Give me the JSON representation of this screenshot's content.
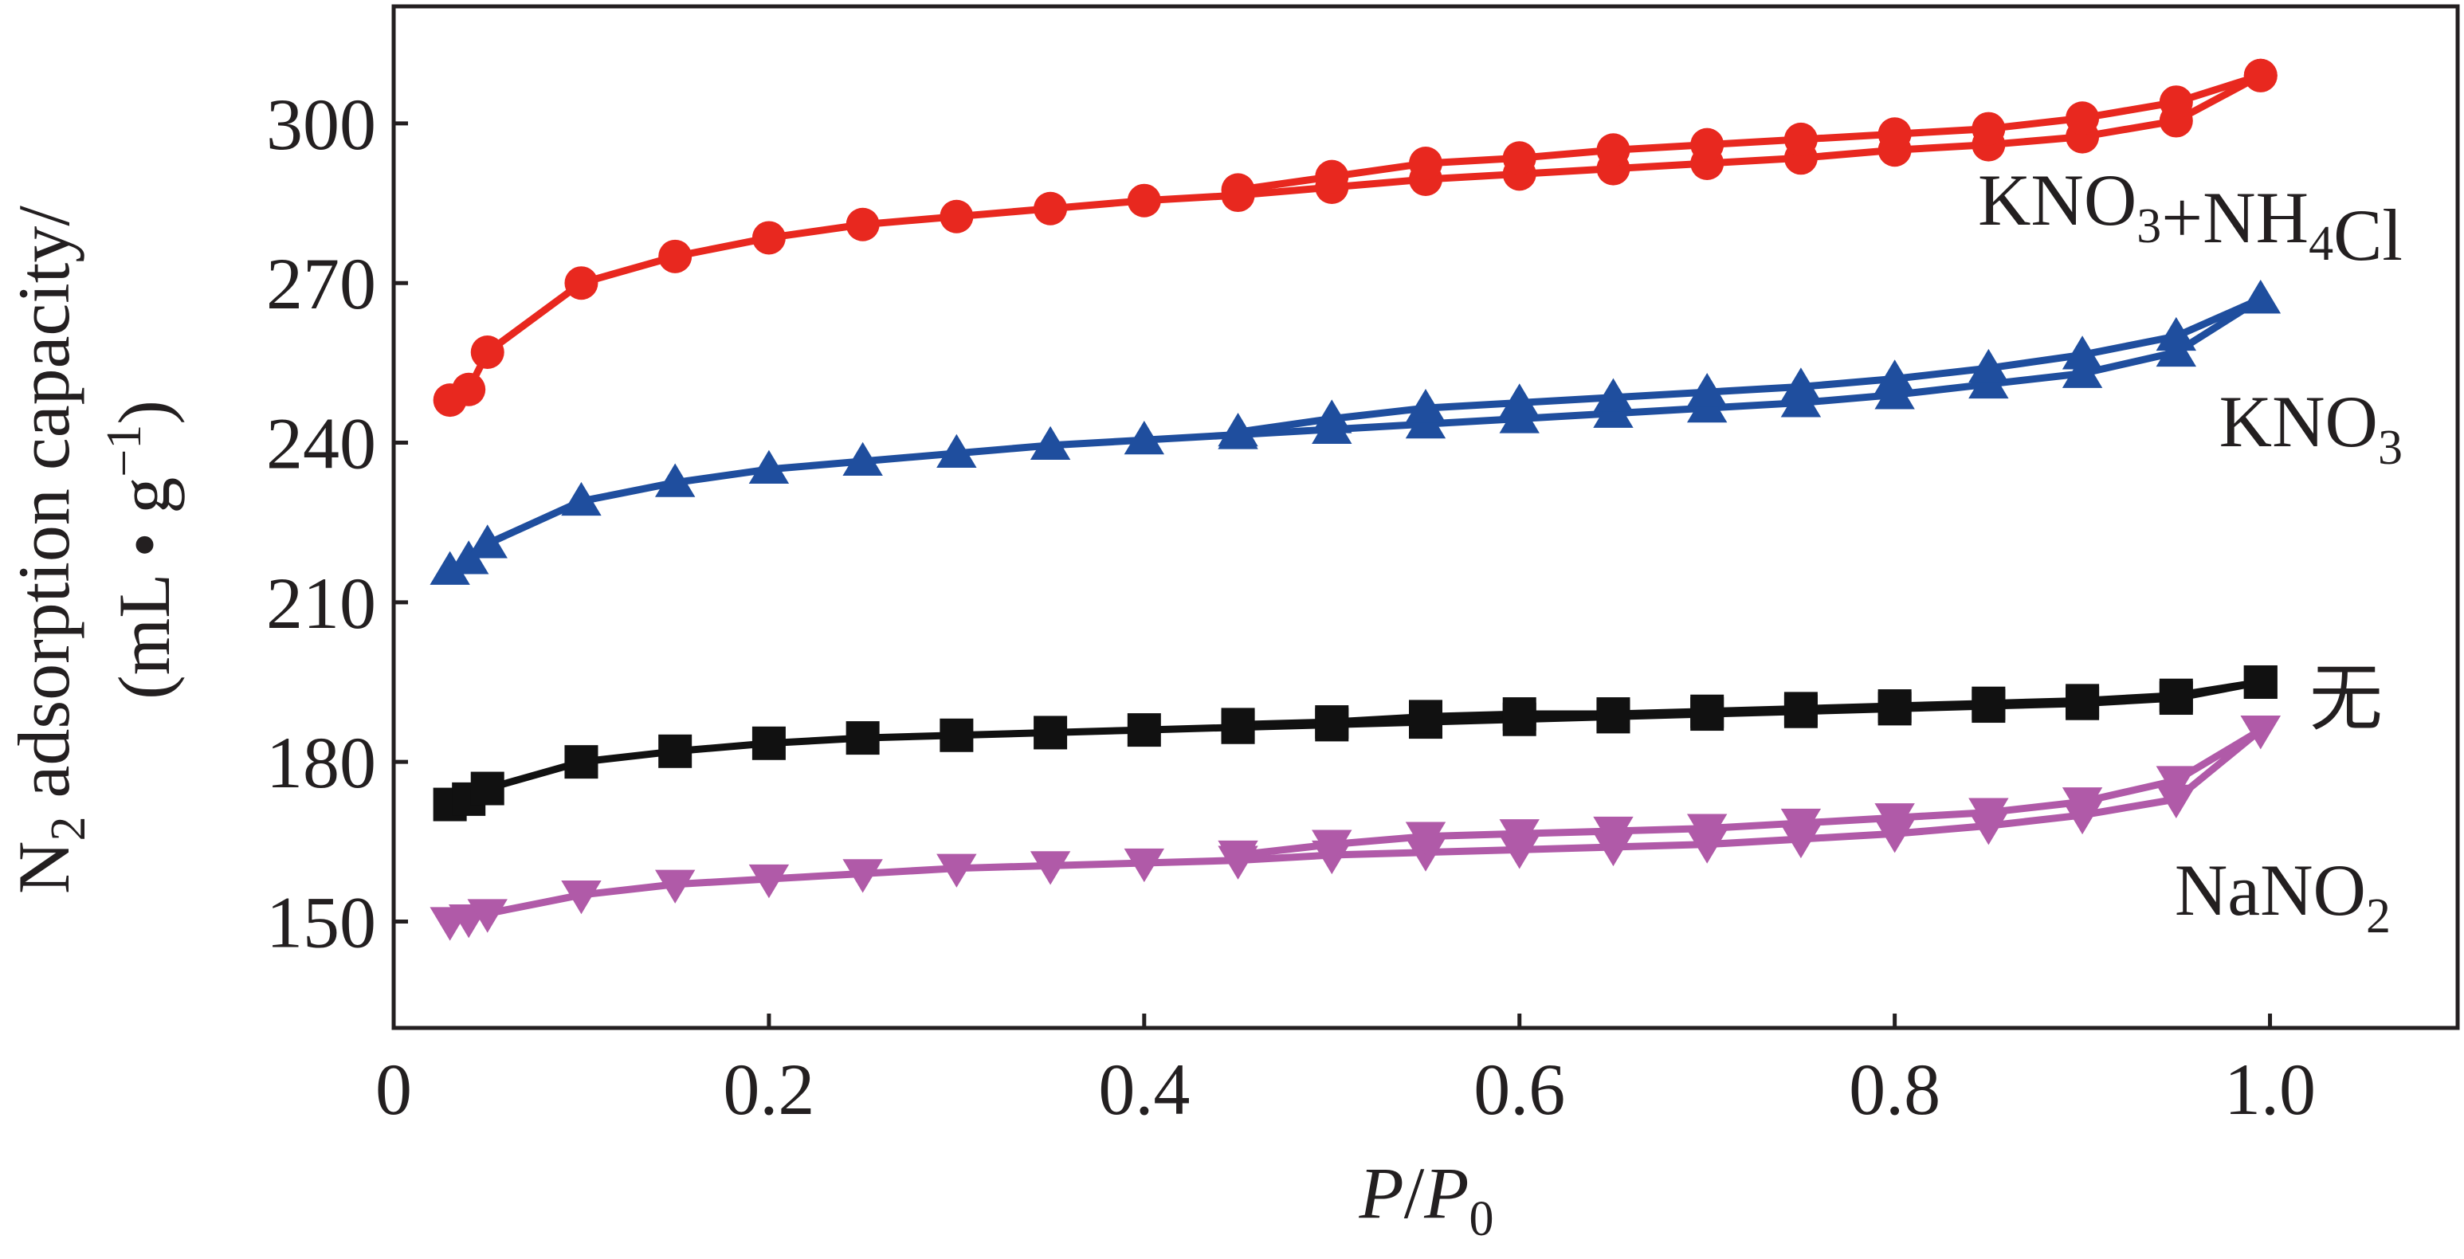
{
  "chart_data": {
    "type": "line",
    "xlabel": {
      "main": "P",
      "slash": "/",
      "sym": "P",
      "sub": "0"
    },
    "ylabel": {
      "line1": {
        "pre": "N",
        "sub": "2",
        "rest": " adsorption capacity/"
      },
      "line2": {
        "open": "(mL • g",
        "sup": "−1",
        "close": ")"
      }
    },
    "xlim": [
      0,
      1.1
    ],
    "ylim": [
      130,
      322
    ],
    "xticks": [
      {
        "v": 0,
        "label": "0"
      },
      {
        "v": 0.2,
        "label": "0.2"
      },
      {
        "v": 0.4,
        "label": "0.4"
      },
      {
        "v": 0.6,
        "label": "0.6"
      },
      {
        "v": 0.8,
        "label": "0.8"
      },
      {
        "v": 1.0,
        "label": "1.0"
      }
    ],
    "yticks": [
      {
        "v": 150,
        "label": "150"
      },
      {
        "v": 180,
        "label": "180"
      },
      {
        "v": 210,
        "label": "210"
      },
      {
        "v": 240,
        "label": "240"
      },
      {
        "v": 270,
        "label": "270"
      },
      {
        "v": 300,
        "label": "300"
      }
    ],
    "grid": false,
    "x_adsorption": [
      0.03,
      0.04,
      0.05,
      0.1,
      0.15,
      0.2,
      0.25,
      0.3,
      0.35,
      0.4,
      0.45,
      0.5,
      0.55,
      0.6,
      0.65,
      0.7,
      0.75,
      0.8,
      0.85,
      0.9,
      0.95,
      0.995
    ],
    "x_desorption": [
      0.995,
      0.95,
      0.9,
      0.85,
      0.8,
      0.75,
      0.7,
      0.65,
      0.6,
      0.55,
      0.5,
      0.45
    ],
    "series": [
      {
        "label_parts": [
          {
            "t": "KNO"
          },
          {
            "t": "3",
            "sub": true
          },
          {
            "t": "+NH"
          },
          {
            "t": "4",
            "sub": true
          },
          {
            "t": "Cl"
          }
        ],
        "color": "#e8281f",
        "marker": "circle",
        "adsorption": [
          248,
          250,
          257,
          270,
          275,
          278.5,
          281,
          282.5,
          284,
          285.5,
          286.5,
          288,
          289.5,
          290.5,
          291.5,
          292.5,
          293.5,
          295,
          296,
          297.5,
          300.5,
          309
        ],
        "desorption": [
          309,
          304,
          301,
          299,
          298,
          297,
          296,
          295,
          293.5,
          292.5,
          290,
          287.5
        ]
      },
      {
        "label_parts": [
          {
            "t": "KNO"
          },
          {
            "t": "3",
            "sub": true
          }
        ],
        "color": "#1f4e9e",
        "marker": "triangle-up",
        "adsorption": [
          216,
          218,
          221,
          229,
          232.5,
          235,
          236.5,
          238,
          239.5,
          240.5,
          241.5,
          242.5,
          243.5,
          244.5,
          245.5,
          246.5,
          247.5,
          249,
          251,
          253,
          257,
          267
        ],
        "desorption": [
          267,
          260,
          256.5,
          254,
          252,
          250.5,
          249.5,
          248.5,
          247.5,
          246.5,
          244.5,
          242
        ]
      },
      {
        "label_parts": [
          {
            "t": "无"
          }
        ],
        "color": "#111111",
        "marker": "square",
        "adsorption": [
          172,
          173,
          175,
          180,
          182,
          183.5,
          184.5,
          185,
          185.5,
          186,
          186.5,
          187,
          187.5,
          188,
          188.5,
          189,
          189.5,
          190,
          190.5,
          191,
          192,
          195
        ],
        "desorption": [
          195,
          192.5,
          191.5,
          191,
          190.5,
          190,
          189.5,
          189,
          189,
          188.5,
          187.5,
          187
        ]
      },
      {
        "label_parts": [
          {
            "t": "NaNO"
          },
          {
            "t": "2",
            "sub": true
          }
        ],
        "color": "#b05aa8",
        "marker": "triangle-down",
        "adsorption": [
          150,
          150.5,
          151.5,
          155,
          157,
          158,
          159,
          160,
          160.5,
          161,
          161.5,
          162.5,
          163,
          163.5,
          164,
          164.5,
          165.5,
          166.5,
          168,
          170,
          173,
          186
        ],
        "desorption": [
          186,
          176.5,
          172.5,
          170.5,
          169.5,
          168.5,
          167.5,
          167,
          166.5,
          166,
          164.5,
          162.5
        ]
      }
    ]
  }
}
